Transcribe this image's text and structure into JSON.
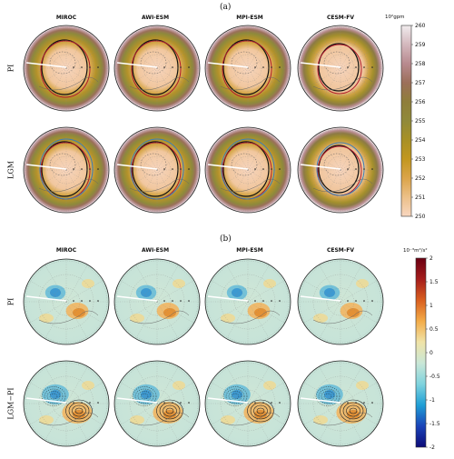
{
  "chart_data": [
    {
      "panel": "(a)",
      "type": "heatmap",
      "models": [
        "MIROC",
        "AWI-ESM",
        "MPI-ESM",
        "CESM-FV"
      ],
      "rows": [
        "PI",
        "LGM"
      ],
      "colorbar": {
        "unit": "10²gpm",
        "ticks": [
          250,
          251,
          252,
          253,
          254,
          255,
          256,
          257,
          258,
          259,
          260
        ],
        "range": [
          250,
          260
        ],
        "colors": [
          "#f8d7c0",
          "#ecc089",
          "#dba449",
          "#c2971f",
          "#a89025",
          "#90893a",
          "#8f7e3a",
          "#9c6f5a",
          "#b88a8f",
          "#d4b8bd",
          "#f1ecee"
        ]
      }
    },
    {
      "panel": "(b)",
      "type": "heatmap",
      "models": [
        "MIROC",
        "AWI-ESM",
        "MPI-ESM",
        "CESM-FV"
      ],
      "rows": [
        "PI",
        "LGM−PI"
      ],
      "colorbar": {
        "unit": "10⁻³m²/s²",
        "ticks": [
          -2,
          -1.5,
          -1,
          -0.5,
          0,
          0.5,
          1,
          1.5,
          2
        ],
        "range": [
          -2,
          2
        ],
        "colors": [
          "#0d0b78",
          "#1a43b8",
          "#1f9fd6",
          "#7fd3de",
          "#c9e7d7",
          "#f0e3a7",
          "#f3ac48",
          "#d95f1f",
          "#a51d1c",
          "#6b0012"
        ]
      }
    }
  ],
  "labels": {
    "panel_a": "(a)",
    "panel_b": "(b)",
    "models": [
      "MIROC",
      "AWI-ESM",
      "MPI-ESM",
      "CESM-FV"
    ],
    "rows_a": [
      "PI",
      "LGM"
    ],
    "rows_b": [
      "PI",
      "LGM−PI"
    ],
    "cb_a_unit": "10²gpm",
    "cb_b_unit": "10⁻³m²/s²"
  }
}
